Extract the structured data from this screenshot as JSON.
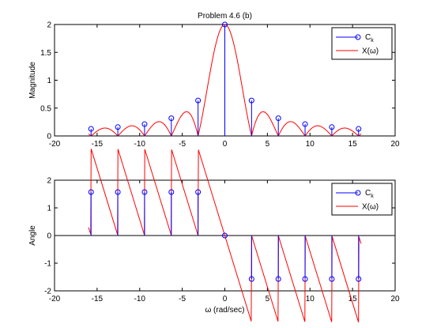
{
  "chart_data": [
    {
      "type": "line",
      "title": "Problem 4.6 (b)",
      "xlabel": "",
      "ylabel": "Magnitude",
      "xlim": [
        -20,
        20
      ],
      "ylim": [
        0,
        2
      ],
      "x_ticks": [
        "-20",
        "-15",
        "-10",
        "-5",
        "0",
        "5",
        "10",
        "15",
        "20"
      ],
      "y_ticks": [
        "0",
        "0.5",
        "1",
        "1.5",
        "2"
      ],
      "grid": false,
      "legend_position": "top-right",
      "legend": [
        "C_k",
        "X(ω)"
      ],
      "series": [
        {
          "name": "C_k",
          "style": "stem",
          "x": [
            -15.708,
            -12.566,
            -9.425,
            -6.283,
            -3.142,
            0,
            3.142,
            6.283,
            9.425,
            12.566,
            15.708
          ],
          "values": [
            0.127,
            0.159,
            0.212,
            0.318,
            0.637,
            2.0,
            0.637,
            0.318,
            0.212,
            0.159,
            0.127
          ]
        },
        {
          "name": "X(ω)",
          "style": "line",
          "formula": "abs(X)",
          "range": [
            -16,
            16
          ]
        }
      ]
    },
    {
      "type": "line",
      "title": "",
      "xlabel": "ω (rad/sec)",
      "ylabel": "Angle",
      "xlim": [
        -20,
        20
      ],
      "ylim": [
        -2,
        2
      ],
      "x_ticks": [
        "-20",
        "-15",
        "-10",
        "-5",
        "0",
        "5",
        "10",
        "15",
        "20"
      ],
      "y_ticks": [
        "-2",
        "-1",
        "0",
        "1",
        "2"
      ],
      "grid": false,
      "legend_position": "top-right",
      "legend": [
        "C_k",
        "X(ω)"
      ],
      "series": [
        {
          "name": "C_k",
          "style": "stem",
          "x": [
            -15.708,
            -12.566,
            -9.425,
            -6.283,
            -3.142,
            0,
            3.142,
            6.283,
            9.425,
            12.566,
            15.708
          ],
          "values": [
            1.5708,
            1.5708,
            1.5708,
            1.5708,
            1.5708,
            0,
            -1.5708,
            -1.5708,
            -1.5708,
            -1.5708,
            -1.5708
          ]
        },
        {
          "name": "X(ω)",
          "style": "line",
          "formula": "angle(X)",
          "range": [
            -16,
            16
          ]
        }
      ]
    }
  ],
  "colors": {
    "stem": "#0000ff",
    "curve": "#ff0000",
    "axis": "#000000"
  }
}
